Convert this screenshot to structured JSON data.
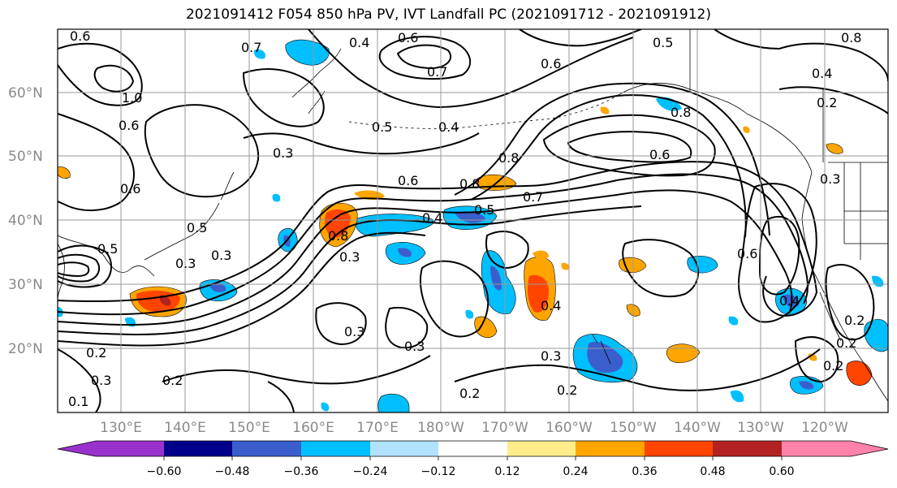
{
  "title": "2021091412 F054 850 hPa PV, IVT Landfall PC (2021091712 - 2021091912)",
  "lat_labels": [
    "60°N",
    "50°N",
    "40°N",
    "30°N",
    "20°N"
  ],
  "lon_labels": [
    "130°E",
    "140°E",
    "150°E",
    "160°E",
    "170°E",
    "180°W",
    "170°W",
    "160°W",
    "150°W",
    "140°W",
    "130°W",
    "120°W"
  ],
  "colorbar": {
    "colors": [
      "#9932cc",
      "#00008b",
      "#3a5fcd",
      "#00bfff",
      "#b0e2ff",
      "#ffffff",
      "#ffec8b",
      "#ffa500",
      "#ff4500",
      "#b22222",
      "#ff82ab"
    ],
    "tick_labels": [
      "−0.60",
      "−0.48",
      "−0.36",
      "−0.24",
      "−0.12",
      "0.12",
      "0.24",
      "0.36",
      "0.48",
      "0.60"
    ]
  },
  "contour_labels": [
    "0.6",
    "0.7",
    "0.4",
    "0.6",
    "0.7",
    "0.6",
    "0.5",
    "0.8",
    "0.4",
    "0.2",
    "1.0",
    "0.6",
    "0.5",
    "0.4",
    "0.8",
    "0.6",
    "0.3",
    "0.6",
    "0.8",
    "0.6",
    "0.8",
    "0.7",
    "0.4",
    "0.5",
    "0.5",
    "0.3",
    "0.8",
    "0.3",
    "0.3",
    "0.5",
    "0.4",
    "0.6",
    "0.3",
    "0.3",
    "0.2",
    "0.3",
    "0.2",
    "0.2",
    "0.3",
    "0.2",
    "0.2",
    "0.2",
    "0.3",
    "0.2",
    "0.4",
    "0.1"
  ]
}
